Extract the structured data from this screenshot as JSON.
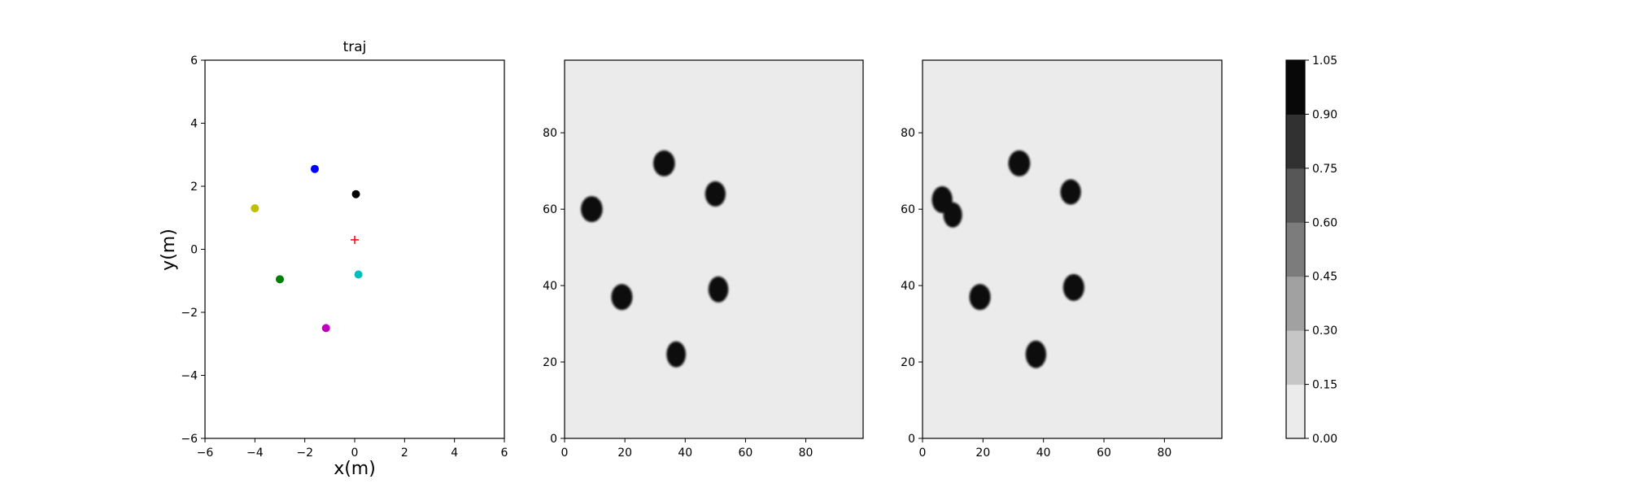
{
  "chart_data": [
    {
      "type": "scatter",
      "title": "traj",
      "xlabel": "x(m)",
      "ylabel": "y(m)",
      "xlim": [
        -6,
        6
      ],
      "ylim": [
        -6,
        6
      ],
      "xticks": [
        -6,
        -4,
        -2,
        0,
        2,
        4,
        6
      ],
      "yticks": [
        -6,
        -4,
        -2,
        0,
        2,
        4,
        6
      ],
      "grid": false,
      "points": [
        {
          "x": -1.6,
          "y": 2.55,
          "color": "#0000ff"
        },
        {
          "x": 0.05,
          "y": 1.75,
          "color": "#000000"
        },
        {
          "x": -4.0,
          "y": 1.3,
          "color": "#bfbf00"
        },
        {
          "x": -3.0,
          "y": -0.95,
          "color": "#008000"
        },
        {
          "x": 0.15,
          "y": -0.8,
          "color": "#00bfbf"
        },
        {
          "x": -1.15,
          "y": -2.5,
          "color": "#bf00bf"
        }
      ],
      "marker": {
        "x": 0.0,
        "y": 0.3,
        "symbol": "+",
        "color": "#ff0000"
      }
    },
    {
      "type": "heatmap",
      "title": "",
      "xlim": [
        0,
        99
      ],
      "ylim": [
        0,
        99
      ],
      "xticks": [
        0,
        20,
        40,
        60,
        80
      ],
      "yticks": [
        0,
        20,
        40,
        60,
        80
      ],
      "background_level": 0.0,
      "blobs": [
        {
          "x": 9,
          "y": 60,
          "rx": 3.6,
          "ry": 3.4,
          "level": 1.0
        },
        {
          "x": 33,
          "y": 72,
          "rx": 3.6,
          "ry": 3.4,
          "level": 1.0
        },
        {
          "x": 50,
          "y": 64,
          "rx": 3.4,
          "ry": 3.3,
          "level": 1.0
        },
        {
          "x": 19,
          "y": 37,
          "rx": 3.5,
          "ry": 3.4,
          "level": 1.0
        },
        {
          "x": 51,
          "y": 39,
          "rx": 3.3,
          "ry": 3.4,
          "level": 1.0
        },
        {
          "x": 37,
          "y": 22,
          "rx": 3.2,
          "ry": 3.4,
          "level": 1.0
        }
      ]
    },
    {
      "type": "heatmap",
      "title": "",
      "xlim": [
        0,
        99
      ],
      "ylim": [
        0,
        99
      ],
      "xticks": [
        0,
        20,
        40,
        60,
        80
      ],
      "yticks": [
        0,
        20,
        40,
        60,
        80
      ],
      "background_level": 0.0,
      "blobs": [
        {
          "x": 6.5,
          "y": 62.5,
          "rx": 3.4,
          "ry": 3.5,
          "level": 1.0
        },
        {
          "x": 10,
          "y": 58.5,
          "rx": 3.1,
          "ry": 3.3,
          "level": 1.0
        },
        {
          "x": 32,
          "y": 72,
          "rx": 3.6,
          "ry": 3.4,
          "level": 1.0
        },
        {
          "x": 49,
          "y": 64.5,
          "rx": 3.4,
          "ry": 3.3,
          "level": 1.0
        },
        {
          "x": 19,
          "y": 37,
          "rx": 3.5,
          "ry": 3.4,
          "level": 1.0
        },
        {
          "x": 50,
          "y": 39.5,
          "rx": 3.5,
          "ry": 3.5,
          "level": 1.0
        },
        {
          "x": 37.5,
          "y": 22,
          "rx": 3.4,
          "ry": 3.6,
          "level": 1.0
        }
      ]
    }
  ],
  "colorbar": {
    "ticks": [
      "0.00",
      "0.15",
      "0.30",
      "0.45",
      "0.60",
      "0.75",
      "0.90",
      "1.05"
    ],
    "level_colors": [
      "#ebebeb",
      "#c6c6c6",
      "#a1a1a1",
      "#7c7c7c",
      "#575757",
      "#313131",
      "#080808"
    ]
  }
}
